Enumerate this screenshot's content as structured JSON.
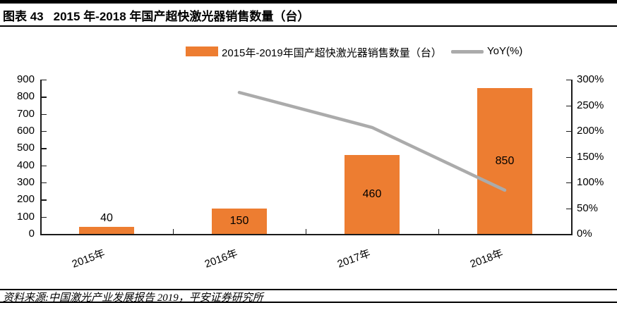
{
  "header": {
    "figure_label": "图表 43",
    "title": "2015 年-2018 年国产超快激光器销售数量（台）"
  },
  "legend": {
    "bar_series_label": "2015年-2019年国产超快激光器销售数量（台）",
    "line_series_label": "YoY(%)"
  },
  "chart_data": {
    "type": "bar",
    "subtype": "bar-with-line-overlay",
    "categories": [
      "2015年",
      "2016年",
      "2017年",
      "2018年"
    ],
    "series": [
      {
        "name": "2015年-2019年国产超快激光器销售数量（台）",
        "type": "bar",
        "axis": "left",
        "values": [
          40,
          150,
          460,
          850
        ],
        "data_labels": [
          "40",
          "150",
          "460",
          "850"
        ],
        "color": "#ED7D31"
      },
      {
        "name": "YoY(%)",
        "type": "line",
        "axis": "right",
        "values": [
          null,
          275,
          207,
          85
        ],
        "color": "#ABABAB"
      }
    ],
    "left_axis": {
      "min": 0,
      "max": 900,
      "step": 100,
      "tick_labels": [
        "0",
        "100",
        "200",
        "300",
        "400",
        "500",
        "600",
        "700",
        "800",
        "900"
      ]
    },
    "right_axis": {
      "min": 0,
      "max": 300,
      "step": 50,
      "tick_labels": [
        "0%",
        "50%",
        "100%",
        "150%",
        "200%",
        "250%",
        "300%"
      ]
    },
    "grid": false,
    "legend_position": "top"
  },
  "footer": {
    "source": "资料来源:中国激光产业发展报告 2019，平安证券研究所"
  },
  "colors": {
    "bar": "#ED7D31",
    "line": "#ABABAB",
    "axis": "#1a1a1a",
    "text": "#000000"
  }
}
